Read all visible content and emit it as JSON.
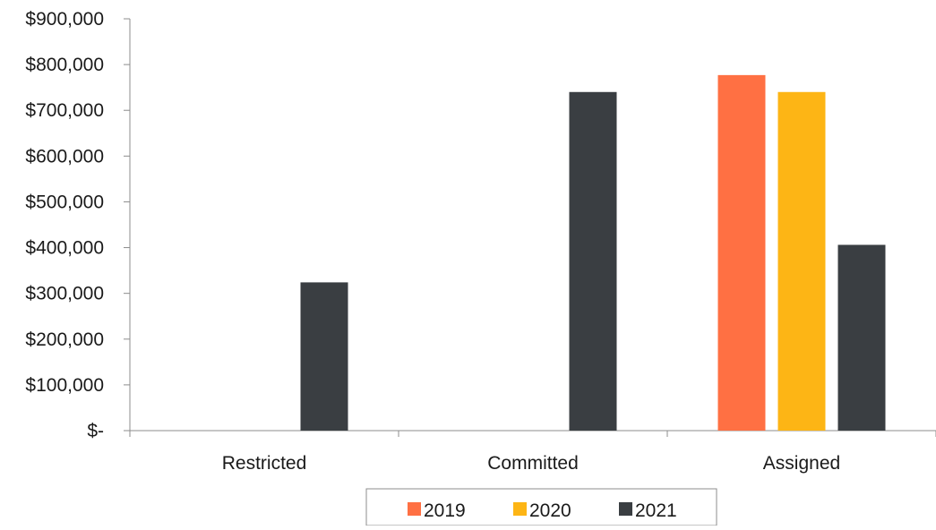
{
  "chart_data": {
    "type": "bar",
    "title": "",
    "xlabel": "",
    "ylabel": "",
    "categories": [
      "Restricted",
      "Committed",
      "Assigned"
    ],
    "series": [
      {
        "name": "2019",
        "color": "#FF7043",
        "values": [
          0,
          0,
          777000
        ]
      },
      {
        "name": "2020",
        "color": "#FDB515",
        "values": [
          0,
          0,
          740000
        ]
      },
      {
        "name": "2021",
        "color": "#3A3E42",
        "values": [
          324000,
          740000,
          406000
        ]
      }
    ],
    "ylim": [
      0,
      900000
    ],
    "yticks": [
      0,
      100000,
      200000,
      300000,
      400000,
      500000,
      600000,
      700000,
      800000,
      900000
    ],
    "ytick_labels": [
      "$-",
      "$100,000",
      "$200,000",
      "$300,000",
      "$400,000",
      "$500,000",
      "$600,000",
      "$700,000",
      "$800,000",
      "$900,000"
    ],
    "grid": false,
    "legend_position": "bottom"
  }
}
